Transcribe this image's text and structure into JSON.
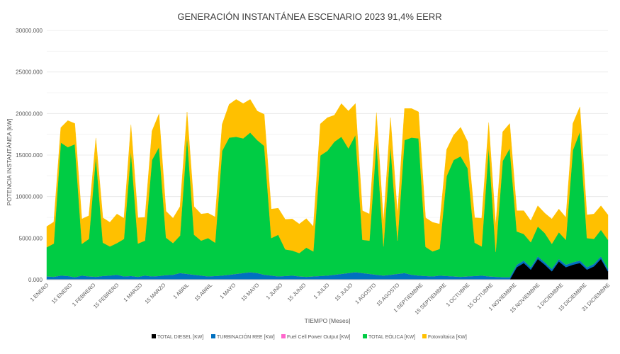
{
  "chart_data": {
    "type": "area",
    "stacked": true,
    "title": "GENERACIÓN INSTANTÁNEA ESCENARIO 2023 91,4% EERR",
    "xlabel": "TIEMPO [Meses]",
    "ylabel": "POTENCIA INSTANTÁNEA [kW]",
    "ylim": [
      0,
      30000
    ],
    "yticks": [
      0,
      5000,
      10000,
      15000,
      20000,
      25000,
      30000
    ],
    "ytick_labels": [
      "0.000",
      "5000.000",
      "10000.000",
      "15000.000",
      "20000.000",
      "25000.000",
      "30000.000"
    ],
    "xtick_labels": [
      "1 ENERO",
      "15 ENERO",
      "1 FEBRERO",
      "15 FEBRERO",
      "1 MARZO",
      "15 MARZO",
      "1 ABRIL",
      "15 ABRIL",
      "1 MAYO",
      "15 MAYO",
      "1 JUNIO",
      "15 JUNIO",
      "1 JULIO",
      "15 JULIO",
      "1 AGOSTO",
      "15 AGOSTO",
      "1 SEPTIEMBRE",
      "15 SEPTIEMBRE",
      "1 OCTUBRE",
      "15 OCTUBRE",
      "1 NOVIEMBRE",
      "15 NOVIEMBRE",
      "1 DICIEMBRE",
      "15 DICIEMBRE",
      "31 DICIEMBRE"
    ],
    "grid": true,
    "legend_position": "bottom",
    "series": [
      {
        "name": "TOTAL DIESEL [KW]",
        "color": "#000000",
        "values": [
          0,
          0,
          0,
          0,
          0,
          0,
          0,
          0,
          0,
          0,
          0,
          0,
          0,
          0,
          0,
          0,
          0,
          0,
          0,
          0,
          0,
          0,
          0,
          0,
          0,
          0,
          0,
          0,
          0,
          0,
          0,
          0,
          0,
          0,
          0,
          0,
          0,
          0,
          0,
          0,
          0,
          0,
          0,
          0,
          0,
          0,
          0,
          0,
          0,
          0,
          0,
          0,
          0,
          0,
          0,
          0,
          0,
          0,
          0,
          0,
          0,
          0,
          0,
          0,
          0,
          0,
          0,
          1500,
          2000,
          1200,
          2500,
          1800,
          1000,
          2200,
          1500,
          1800,
          2000,
          1200,
          1600,
          2500,
          1000
        ]
      },
      {
        "name": "TURBINACIÓN REE [KW]",
        "color": "#0070c0",
        "values": [
          400,
          350,
          500,
          450,
          300,
          500,
          400,
          350,
          450,
          500,
          600,
          400,
          450,
          350,
          500,
          400,
          450,
          550,
          600,
          800,
          700,
          600,
          500,
          400,
          450,
          500,
          600,
          700,
          800,
          900,
          800,
          600,
          500,
          400,
          450,
          500,
          400,
          350,
          400,
          450,
          500,
          600,
          700,
          800,
          900,
          800,
          700,
          600,
          500,
          600,
          700,
          800,
          600,
          500,
          450,
          400,
          500,
          450,
          400,
          350,
          400,
          450,
          500,
          400,
          350,
          300,
          300,
          300,
          300,
          300,
          300,
          300,
          300,
          300,
          300,
          300,
          300,
          300,
          300,
          300,
          300
        ]
      },
      {
        "name": "Fuel Cell Power Output [KW]",
        "color": "#ff66cc",
        "values": [
          0,
          0,
          0,
          0,
          0,
          0,
          0,
          0,
          0,
          0,
          0,
          0,
          0,
          0,
          0,
          0,
          0,
          0,
          0,
          0,
          0,
          0,
          0,
          0,
          0,
          0,
          0,
          0,
          0,
          0,
          0,
          0,
          0,
          0,
          0,
          0,
          0,
          0,
          0,
          0,
          0,
          0,
          0,
          0,
          0,
          0,
          0,
          0,
          0,
          0,
          0,
          0,
          0,
          0,
          0,
          0,
          0,
          0,
          0,
          0,
          0,
          0,
          0,
          0,
          0,
          0,
          0,
          0,
          0,
          0,
          0,
          0,
          0,
          0,
          0,
          0,
          0,
          0,
          0,
          0,
          0
        ]
      },
      {
        "name": "TOTAL EÓLICA [KW]",
        "color": "#00cc44",
        "values": [
          3500,
          4000,
          16000,
          15500,
          16000,
          3800,
          4500,
          14500,
          4000,
          3500,
          3800,
          4500,
          15000,
          4000,
          4200,
          14000,
          15500,
          4500,
          3800,
          4500,
          16500,
          4800,
          4200,
          4600,
          4000,
          15000,
          16500,
          16500,
          16200,
          16800,
          16000,
          15500,
          4500,
          5000,
          3200,
          3000,
          2800,
          3500,
          3000,
          14500,
          15000,
          16000,
          16500,
          15000,
          16500,
          4000,
          4000,
          16000,
          3500,
          15500,
          4000,
          16000,
          16500,
          16500,
          3500,
          3000,
          3200,
          12000,
          14000,
          14500,
          13000,
          4000,
          3500,
          15500,
          3000,
          14000,
          15500,
          4000,
          3200,
          3000,
          3600,
          3500,
          3000,
          3200,
          3000,
          13500,
          15500,
          3500,
          3000,
          3200,
          3500
        ]
      },
      {
        "name": "Fotovoltaica [KW]",
        "color": "#ffc000",
        "values": [
          2500,
          2600,
          1800,
          3200,
          2500,
          3000,
          2800,
          2200,
          3000,
          2900,
          3500,
          2500,
          3200,
          3100,
          2800,
          3500,
          4000,
          3200,
          3000,
          3500,
          3000,
          3400,
          3200,
          3000,
          3100,
          3200,
          4000,
          4500,
          4200,
          4000,
          3500,
          3800,
          3500,
          3200,
          3600,
          3800,
          3500,
          3500,
          3000,
          3800,
          4000,
          3200,
          4000,
          4500,
          3800,
          3500,
          3200,
          3500,
          3000,
          3400,
          3200,
          3800,
          3500,
          3200,
          3500,
          3500,
          3000,
          3200,
          3000,
          3500,
          3200,
          3000,
          3400,
          3000,
          3200,
          3500,
          3000,
          2500,
          2800,
          2600,
          2500,
          2400,
          3000,
          2800,
          2700,
          3200,
          3000,
          2800,
          3000,
          2900,
          3000
        ]
      }
    ]
  }
}
